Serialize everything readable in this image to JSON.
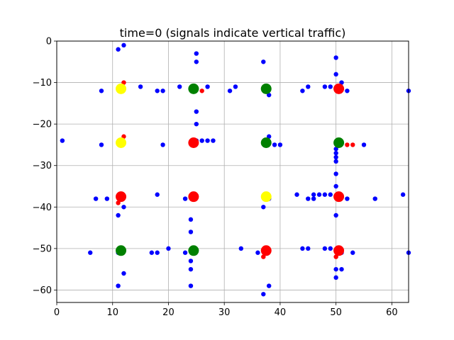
{
  "chart_data": {
    "type": "scatter",
    "title": "time=0 (signals indicate vertical traffic)",
    "xlabel": "",
    "ylabel": "",
    "xlim": [
      0,
      63
    ],
    "ylim": [
      -63,
      0
    ],
    "xticks": [
      0,
      10,
      20,
      30,
      40,
      50,
      60
    ],
    "yticks": [
      0,
      -10,
      -20,
      -30,
      -40,
      -50,
      -60
    ],
    "grid": true,
    "colors": {
      "vehicle_blue": "#0000ff",
      "vehicle_red": "#ff0000",
      "signal_red": "#ff0000",
      "signal_green": "#008000",
      "signal_yellow": "#ffff00",
      "grid": "#b0b0b0"
    },
    "signals": [
      {
        "x": 11.5,
        "y": -11.5,
        "color": "yellow"
      },
      {
        "x": 24.5,
        "y": -11.5,
        "color": "green"
      },
      {
        "x": 37.5,
        "y": -11.5,
        "color": "green"
      },
      {
        "x": 50.5,
        "y": -11.5,
        "color": "red"
      },
      {
        "x": 11.5,
        "y": -24.5,
        "color": "yellow"
      },
      {
        "x": 24.5,
        "y": -24.5,
        "color": "red"
      },
      {
        "x": 37.5,
        "y": -24.5,
        "color": "green"
      },
      {
        "x": 50.5,
        "y": -24.5,
        "color": "green"
      },
      {
        "x": 11.5,
        "y": -37.5,
        "color": "red"
      },
      {
        "x": 24.5,
        "y": -37.5,
        "color": "red"
      },
      {
        "x": 37.5,
        "y": -37.5,
        "color": "yellow"
      },
      {
        "x": 50.5,
        "y": -37.5,
        "color": "red"
      },
      {
        "x": 11.5,
        "y": -50.5,
        "color": "green"
      },
      {
        "x": 24.5,
        "y": -50.5,
        "color": "green"
      },
      {
        "x": 37.5,
        "y": -50.5,
        "color": "red"
      },
      {
        "x": 50.5,
        "y": -50.5,
        "color": "red"
      }
    ],
    "vehicles": [
      {
        "x": 11,
        "y": -2,
        "color": "blue"
      },
      {
        "x": 12,
        "y": -1,
        "color": "blue"
      },
      {
        "x": 25,
        "y": -3,
        "color": "blue"
      },
      {
        "x": 25,
        "y": -5,
        "color": "blue"
      },
      {
        "x": 37,
        "y": -5,
        "color": "blue"
      },
      {
        "x": 50,
        "y": -4,
        "color": "blue"
      },
      {
        "x": 50,
        "y": -8,
        "color": "blue"
      },
      {
        "x": 8,
        "y": -12,
        "color": "blue"
      },
      {
        "x": 12,
        "y": -10,
        "color": "red"
      },
      {
        "x": 15,
        "y": -11,
        "color": "blue"
      },
      {
        "x": 18,
        "y": -12,
        "color": "blue"
      },
      {
        "x": 19,
        "y": -12,
        "color": "blue"
      },
      {
        "x": 22,
        "y": -11,
        "color": "blue"
      },
      {
        "x": 26,
        "y": -12,
        "color": "red"
      },
      {
        "x": 27,
        "y": -11,
        "color": "blue"
      },
      {
        "x": 31,
        "y": -12,
        "color": "blue"
      },
      {
        "x": 32,
        "y": -11,
        "color": "blue"
      },
      {
        "x": 38,
        "y": -13,
        "color": "blue"
      },
      {
        "x": 44,
        "y": -12,
        "color": "blue"
      },
      {
        "x": 45,
        "y": -11,
        "color": "blue"
      },
      {
        "x": 48,
        "y": -11,
        "color": "blue"
      },
      {
        "x": 49,
        "y": -11,
        "color": "blue"
      },
      {
        "x": 51,
        "y": -10,
        "color": "blue"
      },
      {
        "x": 52,
        "y": -12,
        "color": "blue"
      },
      {
        "x": 63,
        "y": -12,
        "color": "blue"
      },
      {
        "x": 25,
        "y": -17,
        "color": "blue"
      },
      {
        "x": 25,
        "y": -20,
        "color": "blue"
      },
      {
        "x": 1,
        "y": -24,
        "color": "blue"
      },
      {
        "x": 8,
        "y": -25,
        "color": "blue"
      },
      {
        "x": 12,
        "y": -23,
        "color": "red"
      },
      {
        "x": 19,
        "y": -25,
        "color": "blue"
      },
      {
        "x": 25,
        "y": -24,
        "color": "blue"
      },
      {
        "x": 26,
        "y": -24,
        "color": "blue"
      },
      {
        "x": 27,
        "y": -24,
        "color": "blue"
      },
      {
        "x": 28,
        "y": -24,
        "color": "blue"
      },
      {
        "x": 38,
        "y": -23,
        "color": "blue"
      },
      {
        "x": 39,
        "y": -25,
        "color": "blue"
      },
      {
        "x": 40,
        "y": -25,
        "color": "blue"
      },
      {
        "x": 52,
        "y": -25,
        "color": "red"
      },
      {
        "x": 53,
        "y": -25,
        "color": "red"
      },
      {
        "x": 55,
        "y": -25,
        "color": "blue"
      },
      {
        "x": 50,
        "y": -26,
        "color": "blue"
      },
      {
        "x": 50,
        "y": -27,
        "color": "blue"
      },
      {
        "x": 50,
        "y": -28,
        "color": "blue"
      },
      {
        "x": 50,
        "y": -29,
        "color": "blue"
      },
      {
        "x": 50,
        "y": -32,
        "color": "blue"
      },
      {
        "x": 50,
        "y": -35,
        "color": "blue"
      },
      {
        "x": 7,
        "y": -38,
        "color": "blue"
      },
      {
        "x": 9,
        "y": -38,
        "color": "blue"
      },
      {
        "x": 11,
        "y": -39,
        "color": "red"
      },
      {
        "x": 12,
        "y": -40,
        "color": "blue"
      },
      {
        "x": 11,
        "y": -42,
        "color": "blue"
      },
      {
        "x": 18,
        "y": -37,
        "color": "blue"
      },
      {
        "x": 23,
        "y": -38,
        "color": "blue"
      },
      {
        "x": 24,
        "y": -43,
        "color": "blue"
      },
      {
        "x": 24,
        "y": -46,
        "color": "blue"
      },
      {
        "x": 37,
        "y": -40,
        "color": "blue"
      },
      {
        "x": 38,
        "y": -38,
        "color": "blue"
      },
      {
        "x": 43,
        "y": -37,
        "color": "blue"
      },
      {
        "x": 45,
        "y": -38,
        "color": "blue"
      },
      {
        "x": 46,
        "y": -37,
        "color": "blue"
      },
      {
        "x": 46,
        "y": -38,
        "color": "blue"
      },
      {
        "x": 47,
        "y": -37,
        "color": "blue"
      },
      {
        "x": 48,
        "y": -37,
        "color": "blue"
      },
      {
        "x": 49,
        "y": -37,
        "color": "blue"
      },
      {
        "x": 52,
        "y": -38,
        "color": "blue"
      },
      {
        "x": 57,
        "y": -38,
        "color": "blue"
      },
      {
        "x": 62,
        "y": -37,
        "color": "blue"
      },
      {
        "x": 50,
        "y": -42,
        "color": "blue"
      },
      {
        "x": 6,
        "y": -51,
        "color": "blue"
      },
      {
        "x": 11,
        "y": -51,
        "color": "blue"
      },
      {
        "x": 12,
        "y": -56,
        "color": "blue"
      },
      {
        "x": 17,
        "y": -51,
        "color": "blue"
      },
      {
        "x": 18,
        "y": -51,
        "color": "blue"
      },
      {
        "x": 20,
        "y": -50,
        "color": "blue"
      },
      {
        "x": 23,
        "y": -51,
        "color": "blue"
      },
      {
        "x": 24,
        "y": -53,
        "color": "blue"
      },
      {
        "x": 24,
        "y": -55,
        "color": "blue"
      },
      {
        "x": 24,
        "y": -59,
        "color": "blue"
      },
      {
        "x": 33,
        "y": -50,
        "color": "blue"
      },
      {
        "x": 36,
        "y": -51,
        "color": "blue"
      },
      {
        "x": 37,
        "y": -52,
        "color": "red"
      },
      {
        "x": 38,
        "y": -59,
        "color": "blue"
      },
      {
        "x": 37,
        "y": -61,
        "color": "blue"
      },
      {
        "x": 11,
        "y": -59,
        "color": "blue"
      },
      {
        "x": 44,
        "y": -50,
        "color": "blue"
      },
      {
        "x": 45,
        "y": -50,
        "color": "blue"
      },
      {
        "x": 48,
        "y": -50,
        "color": "blue"
      },
      {
        "x": 49,
        "y": -50,
        "color": "blue"
      },
      {
        "x": 50,
        "y": -52,
        "color": "red"
      },
      {
        "x": 51,
        "y": -51,
        "color": "blue"
      },
      {
        "x": 53,
        "y": -51,
        "color": "blue"
      },
      {
        "x": 50,
        "y": -55,
        "color": "blue"
      },
      {
        "x": 51,
        "y": -55,
        "color": "blue"
      },
      {
        "x": 50,
        "y": -57,
        "color": "blue"
      },
      {
        "x": 63,
        "y": -51,
        "color": "blue"
      }
    ]
  }
}
